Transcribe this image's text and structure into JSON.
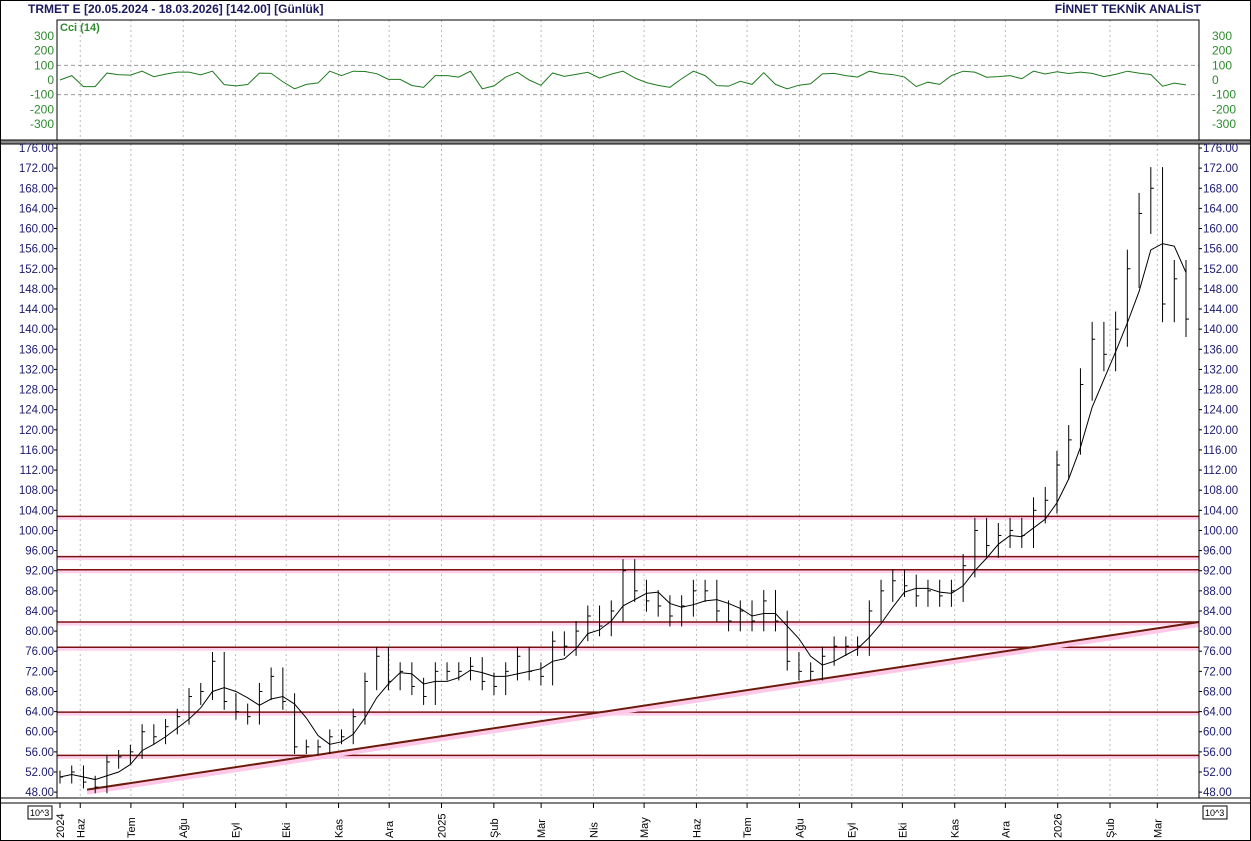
{
  "header": {
    "title": "TRMET E  [20.05.2024 - 18.03.2026]  [142.00]  [Günlük]",
    "brand": "FİNNET TEKNİK ANALİST"
  },
  "colors": {
    "price_bars": "#000000",
    "moving_average": "#000000",
    "cci_line": "#1f7a1f",
    "cci_axis_labels": "#2e8b2e",
    "price_axis_labels": "#1a1a6e",
    "support_resistance_lines": "#7a1010",
    "trendline": "#6b1a0a",
    "trendline_glow": "#ffc8e8"
  },
  "chart_data": [
    {
      "type": "line",
      "title": "Cci (14)",
      "indicator": "CCI",
      "period": 14,
      "ylim": [
        -300,
        300
      ],
      "yticks": [
        300,
        200,
        100,
        0,
        -100,
        -200,
        -300
      ],
      "reference_lines": [
        100,
        -100
      ],
      "grid": true
    },
    {
      "type": "ohlc-bar",
      "start_date": "2024-05-20",
      "end_date": "2026-03-18",
      "sampling": "weekly",
      "last_close": 142.0,
      "closes": [
        51,
        52,
        50,
        49,
        54,
        55,
        56,
        60,
        59,
        61,
        63,
        67,
        68,
        74,
        66,
        64,
        63,
        68,
        71,
        66,
        57,
        57,
        57,
        59,
        59,
        63,
        70,
        75,
        70,
        72,
        69,
        67,
        72,
        72,
        72,
        73,
        70,
        69,
        72,
        75,
        72,
        71,
        78,
        77,
        80,
        83,
        81,
        84,
        92,
        88,
        86,
        85,
        83,
        85,
        88,
        88,
        84,
        82,
        84,
        82,
        86,
        82,
        74,
        72,
        72,
        75,
        77,
        77,
        77,
        84,
        88,
        90,
        89,
        87,
        88,
        87,
        88,
        93,
        100,
        97,
        99,
        100,
        99,
        104,
        106,
        113,
        118,
        129,
        138,
        135,
        140,
        152,
        163,
        168,
        145,
        150,
        142
      ],
      "moving_average": true,
      "ylim": [
        48,
        176
      ],
      "yticks": [
        176,
        172,
        168,
        164,
        160,
        156,
        152,
        148,
        144,
        140,
        136,
        132,
        128,
        124,
        120,
        116,
        112,
        108,
        104,
        100,
        96,
        92,
        88,
        84,
        80,
        76,
        72,
        68,
        64,
        60,
        56,
        52,
        48
      ],
      "horizontal_levels": [
        102.8,
        94.8,
        92.2,
        81.8,
        76.8,
        63.9,
        55.3
      ],
      "trendline": {
        "from": [
          "2024-06-05",
          48.5
        ],
        "to": [
          "2026-03-31",
          81.8
        ]
      },
      "scale_label": "10^3",
      "xticks": [
        {
          "label": "2024",
          "date": "2024-05-20"
        },
        {
          "label": "Haz",
          "date": "2024-06-01"
        },
        {
          "label": "Tem",
          "date": "2024-07-01"
        },
        {
          "label": "Ağu",
          "date": "2024-08-01"
        },
        {
          "label": "Eyl",
          "date": "2024-09-01"
        },
        {
          "label": "Eki",
          "date": "2024-10-01"
        },
        {
          "label": "Kas",
          "date": "2024-11-01"
        },
        {
          "label": "Ara",
          "date": "2024-12-01"
        },
        {
          "label": "2025",
          "date": "2025-01-01"
        },
        {
          "label": "Şub",
          "date": "2025-02-01"
        },
        {
          "label": "Mar",
          "date": "2025-03-01"
        },
        {
          "label": "Nis",
          "date": "2025-04-01"
        },
        {
          "label": "May",
          "date": "2025-05-01"
        },
        {
          "label": "Haz",
          "date": "2025-06-01"
        },
        {
          "label": "Tem",
          "date": "2025-07-01"
        },
        {
          "label": "Ağu",
          "date": "2025-08-01"
        },
        {
          "label": "Eyl",
          "date": "2025-09-01"
        },
        {
          "label": "Eki",
          "date": "2025-10-01"
        },
        {
          "label": "Kas",
          "date": "2025-11-01"
        },
        {
          "label": "Ara",
          "date": "2025-12-01"
        },
        {
          "label": "2026",
          "date": "2026-01-01"
        },
        {
          "label": "Şub",
          "date": "2026-02-01"
        },
        {
          "label": "Mar",
          "date": "2026-03-01"
        }
      ],
      "grid": true
    }
  ]
}
